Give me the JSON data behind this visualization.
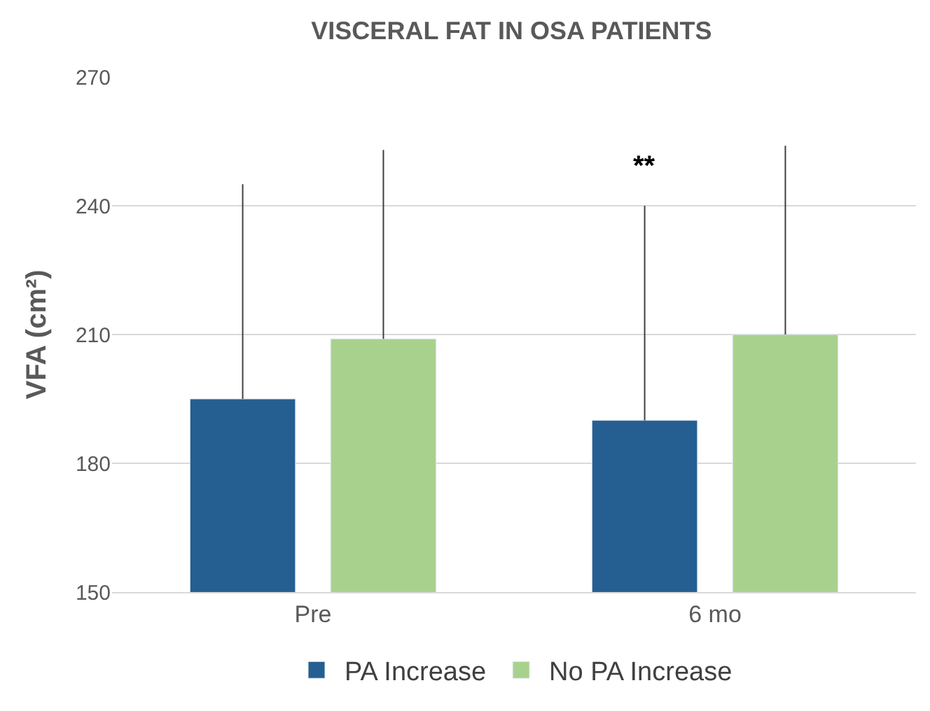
{
  "chart_data": {
    "type": "bar",
    "title": "VISCERAL FAT IN OSA PATIENTS",
    "ylabel": "VFA (cm²)",
    "categories": [
      "Pre",
      "6 mo"
    ],
    "series": [
      {
        "name": "PA Increase",
        "color": "#255e91",
        "values": [
          195,
          190
        ],
        "errors": [
          [
            195,
            245
          ],
          [
            190,
            240
          ]
        ]
      },
      {
        "name": "No PA Increase",
        "color": "#a9d18e",
        "values": [
          209,
          210
        ],
        "errors": [
          [
            209,
            253
          ],
          [
            210,
            254
          ]
        ]
      }
    ],
    "ylim": [
      150,
      270
    ],
    "yticks": [
      150,
      180,
      210,
      240,
      270
    ],
    "grid": "y",
    "legend": "bottom",
    "annotations": [
      "**"
    ]
  }
}
